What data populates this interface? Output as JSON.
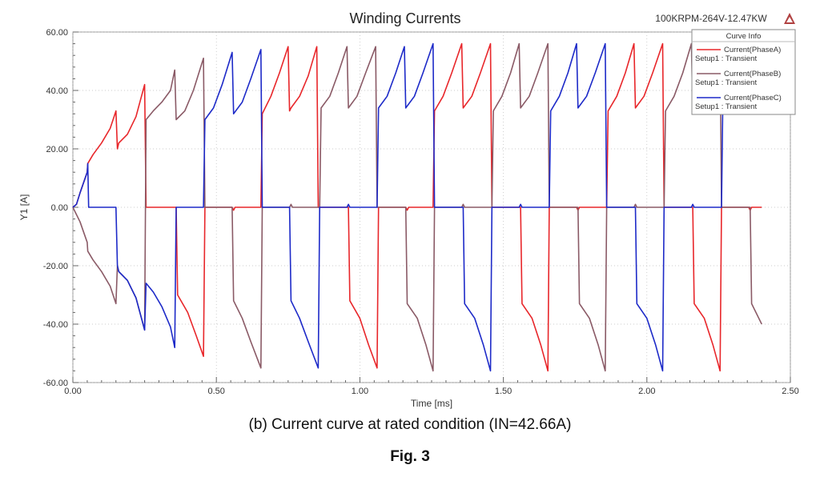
{
  "chart_data": {
    "type": "line",
    "title": "Winding Currents",
    "subtitle": "100KRPM-264V-12.47KW",
    "logo_text": "ANSOFT",
    "xlabel": "Time [ms]",
    "ylabel": "Y1 [A]",
    "xlim": [
      0,
      2.5
    ],
    "ylim": [
      -60,
      60
    ],
    "xticks": [
      "0.00",
      "0.50",
      "1.00",
      "1.50",
      "2.00",
      "2.50"
    ],
    "yticks": [
      "60.00",
      "40.00",
      "20.00",
      "0.00",
      "-20.00",
      "-40.00",
      "-60.00"
    ],
    "grid": true,
    "legend_title": "Curve Info",
    "legend_position": "top-right",
    "series": [
      {
        "name": "Current(PhaseA)",
        "setup": "Setup1 : Transient",
        "color": "#e8262a",
        "points": [
          [
            0,
            0
          ],
          [
            0.0125,
            1
          ],
          [
            0.025,
            5
          ],
          [
            0.05,
            12
          ],
          [
            0.052,
            15
          ],
          [
            0.07,
            18
          ],
          [
            0.1,
            22
          ],
          [
            0.13,
            27
          ],
          [
            0.15,
            33
          ],
          [
            0.155,
            20
          ],
          [
            0.16,
            22
          ],
          [
            0.19,
            25
          ],
          [
            0.22,
            31
          ],
          [
            0.25,
            42
          ],
          [
            0.255,
            0
          ],
          [
            0.35,
            0
          ],
          [
            0.36,
            0
          ],
          [
            0.365,
            -30
          ],
          [
            0.4,
            -36
          ],
          [
            0.43,
            -44
          ],
          [
            0.455,
            -51
          ],
          [
            0.46,
            0
          ],
          [
            0.55,
            0
          ],
          [
            0.555,
            0
          ],
          [
            0.56,
            -1
          ],
          [
            0.565,
            0
          ],
          [
            0.65,
            0
          ],
          [
            0.655,
            0
          ],
          [
            0.66,
            32
          ],
          [
            0.69,
            38
          ],
          [
            0.72,
            46
          ],
          [
            0.75,
            55
          ],
          [
            0.755,
            33
          ],
          [
            0.76,
            34
          ],
          [
            0.79,
            38
          ],
          [
            0.82,
            45
          ],
          [
            0.85,
            55
          ],
          [
            0.855,
            0
          ],
          [
            0.95,
            0
          ],
          [
            0.96,
            0
          ],
          [
            0.965,
            -32
          ],
          [
            1.0,
            -38
          ],
          [
            1.03,
            -47
          ],
          [
            1.06,
            -55
          ],
          [
            1.065,
            0
          ],
          [
            1.15,
            0
          ],
          [
            1.16,
            0
          ],
          [
            1.165,
            -1
          ],
          [
            1.17,
            0
          ],
          [
            1.25,
            0
          ],
          [
            1.255,
            0
          ],
          [
            1.26,
            33
          ],
          [
            1.29,
            38
          ],
          [
            1.32,
            46
          ],
          [
            1.355,
            56
          ],
          [
            1.36,
            34
          ],
          [
            1.39,
            38
          ],
          [
            1.42,
            46
          ],
          [
            1.455,
            56
          ],
          [
            1.46,
            0
          ],
          [
            1.555,
            0
          ],
          [
            1.56,
            0
          ],
          [
            1.565,
            -33
          ],
          [
            1.6,
            -38
          ],
          [
            1.63,
            -47
          ],
          [
            1.655,
            -56
          ],
          [
            1.66,
            0
          ],
          [
            1.75,
            0
          ],
          [
            1.755,
            0
          ],
          [
            1.76,
            -1
          ],
          [
            1.765,
            0
          ],
          [
            1.855,
            0
          ],
          [
            1.86,
            0
          ],
          [
            1.865,
            33
          ],
          [
            1.895,
            38
          ],
          [
            1.925,
            46
          ],
          [
            1.955,
            56
          ],
          [
            1.96,
            34
          ],
          [
            1.99,
            38
          ],
          [
            2.02,
            46
          ],
          [
            2.055,
            56
          ],
          [
            2.06,
            0
          ],
          [
            2.155,
            0
          ],
          [
            2.16,
            0
          ],
          [
            2.165,
            -33
          ],
          [
            2.2,
            -38
          ],
          [
            2.23,
            -47
          ],
          [
            2.255,
            -56
          ],
          [
            2.26,
            0
          ],
          [
            2.35,
            0
          ],
          [
            2.355,
            0
          ],
          [
            2.36,
            -1
          ],
          [
            2.365,
            0
          ],
          [
            2.4,
            0
          ]
        ]
      },
      {
        "name": "Current(PhaseB)",
        "setup": "Setup1 : Transient",
        "color": "#8a5a66",
        "points": [
          [
            0,
            0
          ],
          [
            0.025,
            -5
          ],
          [
            0.05,
            -12
          ],
          [
            0.052,
            -15
          ],
          [
            0.07,
            -18
          ],
          [
            0.1,
            -22
          ],
          [
            0.13,
            -27
          ],
          [
            0.15,
            -33
          ],
          [
            0.155,
            -20
          ],
          [
            0.16,
            -22
          ],
          [
            0.19,
            -25
          ],
          [
            0.22,
            -31
          ],
          [
            0.25,
            -42
          ],
          [
            0.255,
            30
          ],
          [
            0.28,
            33
          ],
          [
            0.31,
            36
          ],
          [
            0.34,
            40
          ],
          [
            0.355,
            47
          ],
          [
            0.36,
            30
          ],
          [
            0.39,
            33
          ],
          [
            0.42,
            40
          ],
          [
            0.455,
            51
          ],
          [
            0.46,
            0
          ],
          [
            0.55,
            0
          ],
          [
            0.555,
            0
          ],
          [
            0.56,
            -32
          ],
          [
            0.59,
            -38
          ],
          [
            0.62,
            -46
          ],
          [
            0.655,
            -55
          ],
          [
            0.66,
            0
          ],
          [
            0.75,
            0
          ],
          [
            0.755,
            0
          ],
          [
            0.76,
            1
          ],
          [
            0.765,
            0
          ],
          [
            0.855,
            0
          ],
          [
            0.86,
            0
          ],
          [
            0.865,
            34
          ],
          [
            0.895,
            38
          ],
          [
            0.925,
            46
          ],
          [
            0.955,
            55
          ],
          [
            0.96,
            34
          ],
          [
            0.99,
            38
          ],
          [
            1.02,
            46
          ],
          [
            1.055,
            55
          ],
          [
            1.06,
            0
          ],
          [
            1.155,
            0
          ],
          [
            1.16,
            0
          ],
          [
            1.165,
            -33
          ],
          [
            1.2,
            -38
          ],
          [
            1.23,
            -47
          ],
          [
            1.255,
            -56
          ],
          [
            1.26,
            0
          ],
          [
            1.35,
            0
          ],
          [
            1.355,
            0
          ],
          [
            1.36,
            1
          ],
          [
            1.365,
            0
          ],
          [
            1.455,
            0
          ],
          [
            1.46,
            0
          ],
          [
            1.465,
            33
          ],
          [
            1.495,
            38
          ],
          [
            1.525,
            46
          ],
          [
            1.555,
            56
          ],
          [
            1.56,
            34
          ],
          [
            1.59,
            38
          ],
          [
            1.62,
            46
          ],
          [
            1.655,
            56
          ],
          [
            1.66,
            0
          ],
          [
            1.755,
            0
          ],
          [
            1.76,
            0
          ],
          [
            1.765,
            -33
          ],
          [
            1.8,
            -38
          ],
          [
            1.83,
            -47
          ],
          [
            1.855,
            -56
          ],
          [
            1.86,
            0
          ],
          [
            1.95,
            0
          ],
          [
            1.955,
            0
          ],
          [
            1.96,
            1
          ],
          [
            1.965,
            0
          ],
          [
            2.055,
            0
          ],
          [
            2.06,
            0
          ],
          [
            2.065,
            33
          ],
          [
            2.095,
            38
          ],
          [
            2.125,
            46
          ],
          [
            2.155,
            56
          ],
          [
            2.16,
            34
          ],
          [
            2.19,
            38
          ],
          [
            2.22,
            46
          ],
          [
            2.255,
            56
          ],
          [
            2.26,
            0
          ],
          [
            2.355,
            0
          ],
          [
            2.36,
            0
          ],
          [
            2.365,
            -33
          ],
          [
            2.39,
            -38
          ],
          [
            2.4,
            -40
          ]
        ]
      },
      {
        "name": "Current(PhaseC)",
        "setup": "Setup1 : Transient",
        "color": "#1d2ac8",
        "points": [
          [
            0,
            0
          ],
          [
            0.0125,
            1
          ],
          [
            0.025,
            5
          ],
          [
            0.05,
            12
          ],
          [
            0.052,
            15
          ],
          [
            0.055,
            0
          ],
          [
            0.15,
            0
          ],
          [
            0.155,
            -20
          ],
          [
            0.16,
            -22
          ],
          [
            0.19,
            -25
          ],
          [
            0.22,
            -31
          ],
          [
            0.25,
            -42
          ],
          [
            0.255,
            -26
          ],
          [
            0.28,
            -29
          ],
          [
            0.31,
            -34
          ],
          [
            0.34,
            -41
          ],
          [
            0.355,
            -48
          ],
          [
            0.36,
            0
          ],
          [
            0.455,
            0
          ],
          [
            0.46,
            30
          ],
          [
            0.49,
            34
          ],
          [
            0.52,
            42
          ],
          [
            0.555,
            53
          ],
          [
            0.56,
            32
          ],
          [
            0.59,
            36
          ],
          [
            0.62,
            44
          ],
          [
            0.655,
            54
          ],
          [
            0.66,
            0
          ],
          [
            0.755,
            0
          ],
          [
            0.76,
            -32
          ],
          [
            0.79,
            -38
          ],
          [
            0.82,
            -46
          ],
          [
            0.855,
            -55
          ],
          [
            0.86,
            0
          ],
          [
            0.95,
            0
          ],
          [
            0.955,
            0
          ],
          [
            0.96,
            1
          ],
          [
            0.965,
            0
          ],
          [
            1.055,
            0
          ],
          [
            1.06,
            0
          ],
          [
            1.065,
            34
          ],
          [
            1.095,
            38
          ],
          [
            1.125,
            46
          ],
          [
            1.155,
            55
          ],
          [
            1.16,
            34
          ],
          [
            1.19,
            38
          ],
          [
            1.22,
            46
          ],
          [
            1.255,
            56
          ],
          [
            1.26,
            0
          ],
          [
            1.355,
            0
          ],
          [
            1.36,
            0
          ],
          [
            1.365,
            -33
          ],
          [
            1.4,
            -38
          ],
          [
            1.43,
            -47
          ],
          [
            1.455,
            -56
          ],
          [
            1.46,
            0
          ],
          [
            1.55,
            0
          ],
          [
            1.555,
            0
          ],
          [
            1.56,
            1
          ],
          [
            1.565,
            0
          ],
          [
            1.655,
            0
          ],
          [
            1.66,
            0
          ],
          [
            1.665,
            33
          ],
          [
            1.695,
            38
          ],
          [
            1.725,
            46
          ],
          [
            1.755,
            56
          ],
          [
            1.76,
            34
          ],
          [
            1.79,
            38
          ],
          [
            1.82,
            46
          ],
          [
            1.855,
            56
          ],
          [
            1.86,
            0
          ],
          [
            1.955,
            0
          ],
          [
            1.96,
            0
          ],
          [
            1.965,
            -33
          ],
          [
            2.0,
            -38
          ],
          [
            2.03,
            -47
          ],
          [
            2.055,
            -56
          ],
          [
            2.06,
            0
          ],
          [
            2.15,
            0
          ],
          [
            2.155,
            0
          ],
          [
            2.16,
            1
          ],
          [
            2.165,
            0
          ],
          [
            2.255,
            0
          ],
          [
            2.26,
            0
          ],
          [
            2.265,
            40
          ]
        ]
      }
    ]
  },
  "caption": {
    "subfigure": "(b) Current curve at rated condition (IN=42.66A)",
    "figure": "Fig. 3"
  }
}
